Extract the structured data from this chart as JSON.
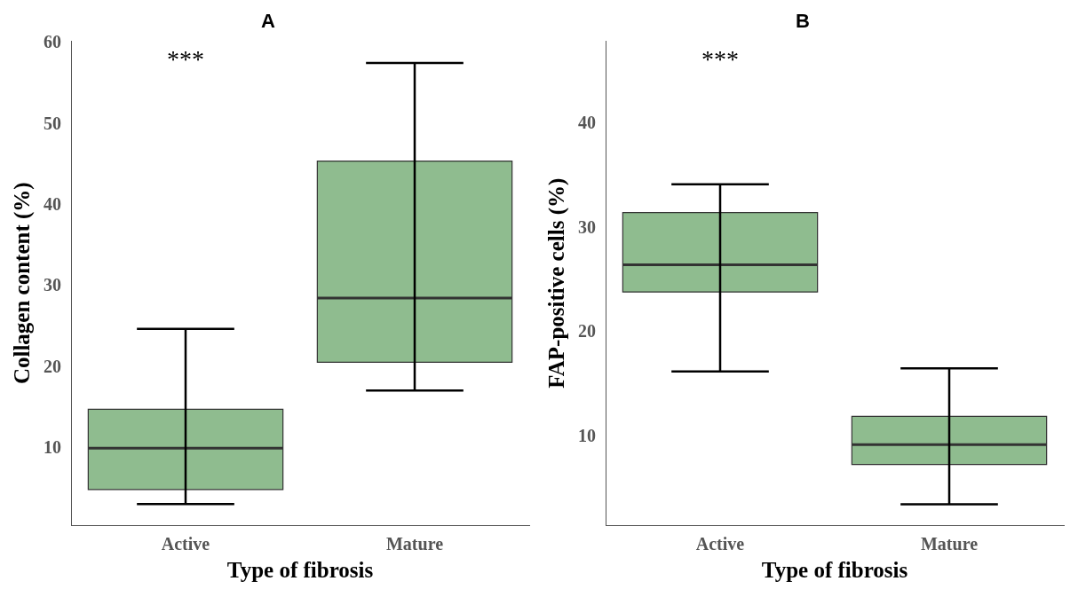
{
  "chart_data": [
    {
      "type": "box",
      "title": "A",
      "xlabel": "Type of fibrosis",
      "ylabel": "Collagen content (%)",
      "categories": [
        "Active",
        "Mature"
      ],
      "color": "#8fbc8f",
      "boxes": [
        {
          "low": 3.2,
          "q1": 5.0,
          "median": 10.1,
          "q3": 14.9,
          "high": 24.8
        },
        {
          "low": 17.2,
          "q1": 20.7,
          "median": 28.6,
          "q3": 45.5,
          "high": 57.6
        }
      ],
      "ylim": [
        0.6,
        60.3
      ],
      "yticks": [
        10,
        20,
        30,
        40,
        50,
        60
      ],
      "grid": false,
      "legend": false,
      "annotations": [
        "***"
      ]
    },
    {
      "type": "box",
      "title": "B",
      "xlabel": "Type of fibrosis",
      "ylabel": "FAP-positive cells (%)",
      "categories": [
        "Active",
        "Mature"
      ],
      "color": "#8fbc8f",
      "boxes": [
        {
          "low": 16.3,
          "q1": 23.9,
          "median": 26.5,
          "q3": 31.5,
          "high": 34.2
        },
        {
          "low": 3.6,
          "q1": 7.4,
          "median": 9.3,
          "q3": 12.0,
          "high": 16.6
        }
      ],
      "ylim": [
        1.6,
        47.9
      ],
      "yticks": [
        10,
        20,
        30,
        40
      ],
      "grid": false,
      "legend": false,
      "annotations": [
        "***"
      ]
    }
  ]
}
